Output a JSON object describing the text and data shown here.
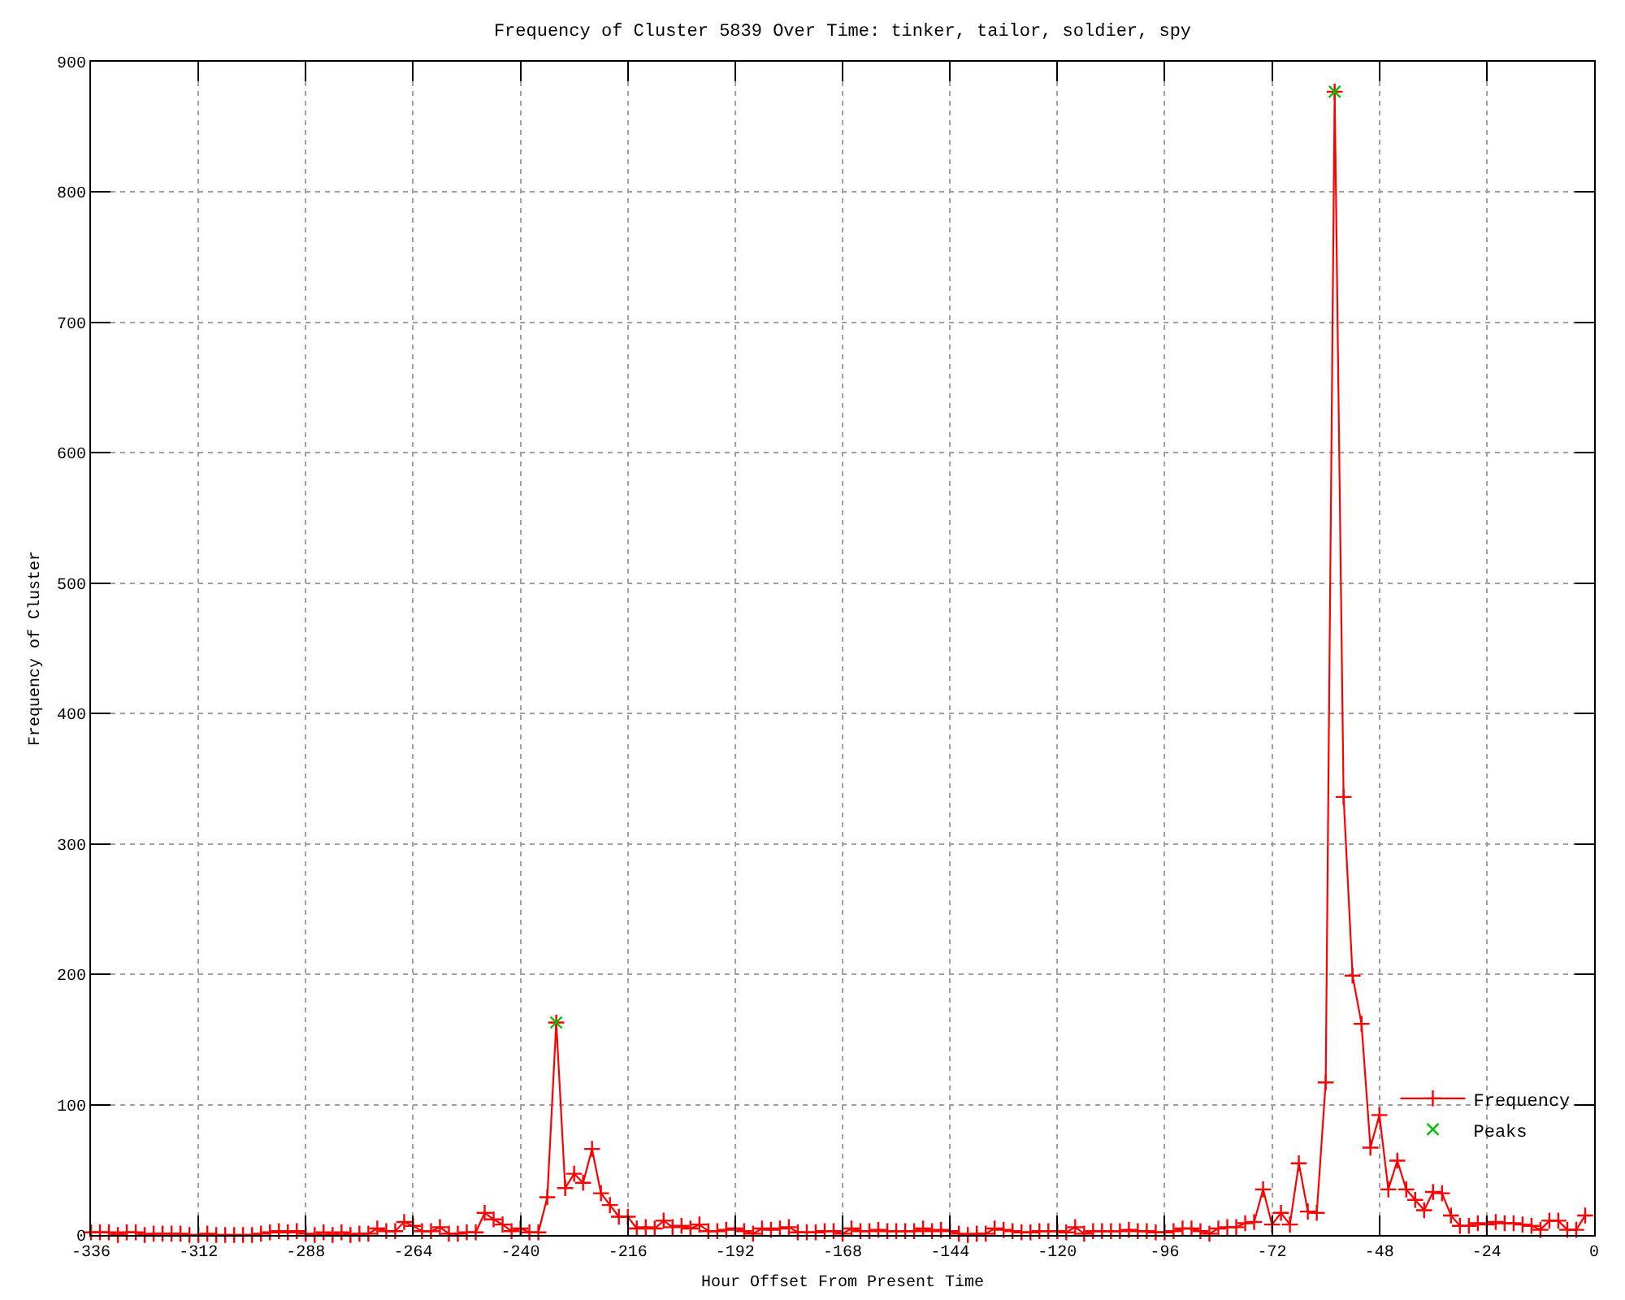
{
  "chart_data": {
    "type": "line",
    "title": "Frequency of Cluster 5839 Over Time: tinker, tailor, soldier, spy",
    "xlabel": "Hour Offset From Present Time",
    "ylabel": "Frequency of Cluster",
    "xlim": [
      -336,
      0
    ],
    "xticks": [
      -336,
      -312,
      -288,
      -264,
      -240,
      -216,
      -192,
      -168,
      -144,
      -120,
      -96,
      -72,
      -48,
      -24,
      0
    ],
    "ylim": [
      0,
      900
    ],
    "yticks": [
      0,
      100,
      200,
      300,
      400,
      500,
      600,
      700,
      800,
      900
    ],
    "grid": true,
    "legend": "bottom right",
    "line_style": "solid",
    "marker": "cross",
    "series": [
      {
        "name": "Frequency",
        "color": "#ff0000",
        "x": [
          -336,
          -334,
          -332,
          -330,
          -328,
          -326,
          -324,
          -322,
          -320,
          -318,
          -316,
          -314,
          -312,
          -310,
          -308,
          -306,
          -304,
          -302,
          -300,
          -298,
          -296,
          -294,
          -292,
          -290,
          -288,
          -286,
          -284,
          -282,
          -280,
          -278,
          -276,
          -274,
          -272,
          -270,
          -268,
          -266,
          -264,
          -262,
          -260,
          -258,
          -256,
          -254,
          -252,
          -250,
          -248,
          -246,
          -244,
          -242,
          -240,
          -238,
          -236,
          -234,
          -232,
          -230,
          -228,
          -226,
          -224,
          -222,
          -220,
          -218,
          -216,
          -214,
          -212,
          -210,
          -208,
          -206,
          -204,
          -202,
          -200,
          -198,
          -196,
          -194,
          -192,
          -190,
          -188,
          -186,
          -184,
          -182,
          -180,
          -178,
          -176,
          -174,
          -172,
          -170,
          -168,
          -166,
          -164,
          -162,
          -160,
          -158,
          -156,
          -154,
          -152,
          -150,
          -148,
          -146,
          -144,
          -142,
          -140,
          -138,
          -136,
          -134,
          -132,
          -130,
          -128,
          -126,
          -124,
          -122,
          -120,
          -118,
          -116,
          -114,
          -112,
          -110,
          -108,
          -106,
          -104,
          -102,
          -100,
          -98,
          -96,
          -94,
          -92,
          -90,
          -88,
          -86,
          -84,
          -82,
          -80,
          -78,
          -76,
          -74,
          -72,
          -70,
          -68,
          -66,
          -64,
          -62,
          -60,
          -58,
          -56,
          -54,
          -52,
          -50,
          -48,
          -46,
          -44,
          -42,
          -40,
          -38,
          -36,
          -34,
          -32,
          -30,
          -28,
          -26,
          -24,
          -22,
          -20,
          -18,
          -16,
          -14,
          -12,
          -10,
          -8,
          -6,
          -4,
          -2
        ],
        "values": [
          2,
          2,
          2,
          0,
          2,
          2,
          0,
          1,
          1,
          1,
          1,
          0,
          0,
          1,
          0,
          0,
          0,
          0,
          0,
          1,
          2,
          3,
          2,
          3,
          1,
          0,
          2,
          0,
          2,
          0,
          1,
          1,
          5,
          3,
          3,
          10,
          7,
          3,
          3,
          6,
          1,
          1,
          2,
          2,
          17,
          12,
          8,
          3,
          5,
          2,
          2,
          29,
          163,
          36,
          47,
          40,
          66,
          32,
          23,
          14,
          14,
          5,
          6,
          5,
          11,
          6,
          7,
          5,
          8,
          3,
          3,
          4,
          5,
          3,
          1,
          5,
          4,
          5,
          6,
          2,
          2,
          2,
          3,
          3,
          1,
          5,
          3,
          3,
          4,
          3,
          3,
          3,
          3,
          5,
          3,
          4,
          3,
          1,
          0,
          1,
          1,
          5,
          4,
          3,
          2,
          2,
          3,
          3,
          3,
          2,
          6,
          1,
          3,
          3,
          3,
          3,
          4,
          3,
          3,
          2,
          2,
          3,
          5,
          5,
          3,
          1,
          5,
          6,
          6,
          9,
          10,
          35,
          8,
          17,
          8,
          55,
          18,
          17,
          117,
          877,
          336,
          199,
          162,
          67,
          92,
          35,
          57,
          35,
          27,
          19,
          33,
          32,
          15,
          7,
          7,
          9,
          8,
          10,
          9,
          9,
          8,
          7,
          4,
          11,
          11,
          4,
          4,
          15
        ]
      },
      {
        "name": "Peaks",
        "type": "scatter",
        "color": "#00c000",
        "marker": "x",
        "x": [
          -232,
          -58
        ],
        "values": [
          163,
          877
        ]
      }
    ]
  }
}
